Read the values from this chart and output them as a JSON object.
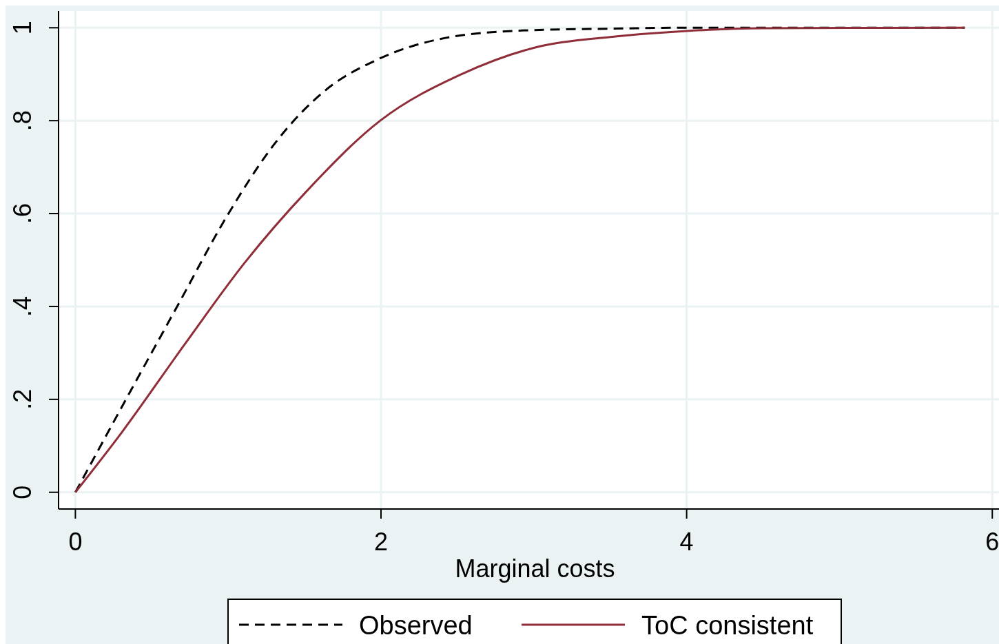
{
  "chart_data": {
    "type": "line",
    "xlabel": "Marginal costs",
    "xlim": [
      -0.11,
      6.08
    ],
    "ylim": [
      -0.036,
      1.036
    ],
    "xticks": [
      0,
      2,
      4,
      6
    ],
    "yticks": [
      {
        "value": 0,
        "label": "0"
      },
      {
        "value": 0.2,
        "label": ".2"
      },
      {
        "value": 0.4,
        "label": ".4"
      },
      {
        "value": 0.6,
        "label": ".6"
      },
      {
        "value": 0.8,
        "label": ".8"
      },
      {
        "value": 1,
        "label": "1"
      }
    ],
    "grid": true,
    "legend": "bottom",
    "series": [
      {
        "name": "Observed",
        "color": "#000000",
        "line_style": "dashed",
        "x": [
          0,
          0.306,
          0.671,
          0.991,
          1.31,
          1.635,
          1.98,
          2.42,
          2.92,
          3.5,
          4,
          5.82
        ],
        "values": [
          0,
          0.185,
          0.403,
          0.594,
          0.753,
          0.865,
          0.932,
          0.978,
          0.994,
          0.998,
          1,
          1
        ]
      },
      {
        "name": "ToC consistent",
        "color": "#8f2d38",
        "line_style": "solid",
        "x": [
          0,
          0.306,
          0.712,
          1.11,
          1.51,
          1.995,
          2.52,
          3.04,
          3.5,
          4,
          4.5,
          5.82
        ],
        "values": [
          0,
          0.13,
          0.317,
          0.495,
          0.647,
          0.8,
          0.899,
          0.96,
          0.98,
          0.993,
          0.999,
          1
        ]
      }
    ]
  }
}
